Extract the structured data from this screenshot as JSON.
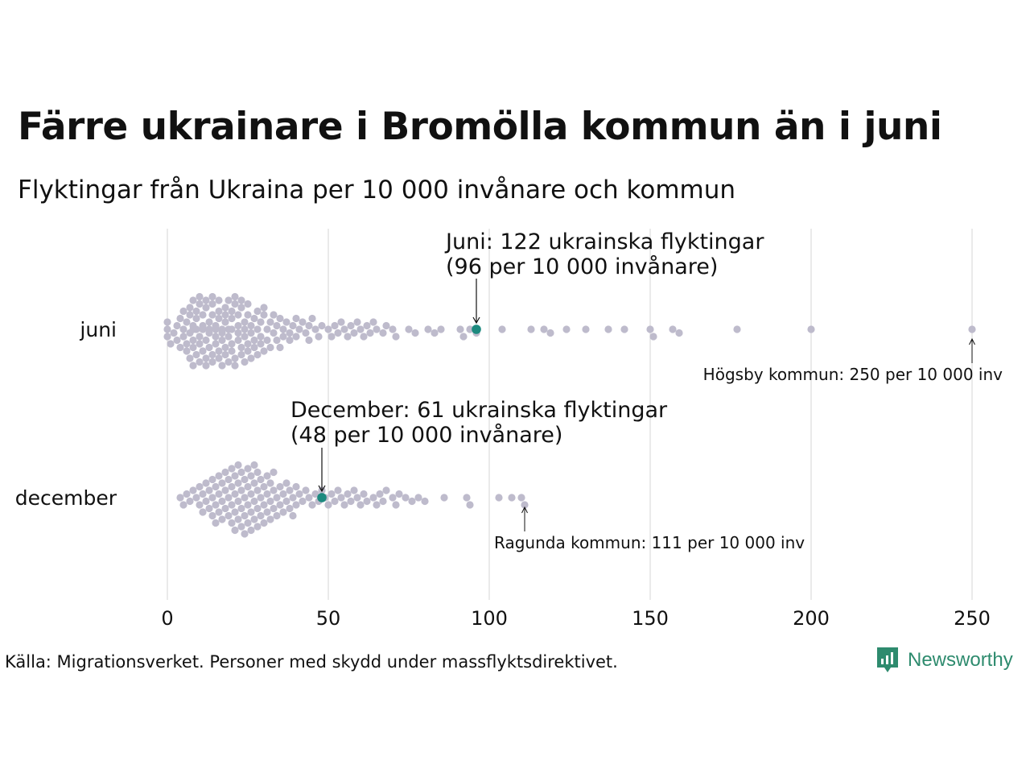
{
  "title": "Färre ukrainare i Bromölla kommun än i juni",
  "subtitle": "Flyktingar från Ukraina per 10 000 invånare och kommun",
  "source": "Källa: Migrationsverket. Personer med skydd under massflyktsdirektivet.",
  "brand": "Newsworthy",
  "colors": {
    "dots": "#bebbcc",
    "highlight": "#1d8a7f",
    "grid": "#d6d6d6",
    "text": "#111111",
    "brand": "#2e8b6e"
  },
  "chart_data": {
    "type": "scatter",
    "subtype": "beeswarm",
    "xlim": [
      0,
      250
    ],
    "x_ticks": [
      0,
      50,
      100,
      150,
      200,
      250
    ],
    "grid": true,
    "categories": [
      "juni",
      "december"
    ],
    "series": [
      {
        "name": "juni",
        "values": [
          0,
          0,
          0,
          1,
          2,
          3,
          3,
          4,
          4,
          5,
          5,
          5,
          6,
          6,
          6,
          7,
          7,
          7,
          7,
          8,
          8,
          8,
          8,
          8,
          8,
          9,
          9,
          9,
          9,
          10,
          10,
          10,
          10,
          10,
          11,
          11,
          11,
          11,
          11,
          12,
          12,
          12,
          12,
          12,
          13,
          13,
          13,
          13,
          13,
          14,
          14,
          14,
          14,
          14,
          15,
          15,
          15,
          15,
          15,
          16,
          16,
          16,
          16,
          16,
          17,
          17,
          17,
          17,
          18,
          18,
          18,
          18,
          18,
          19,
          19,
          19,
          19,
          20,
          20,
          20,
          20,
          20,
          21,
          21,
          21,
          21,
          22,
          22,
          22,
          22,
          23,
          23,
          23,
          23,
          24,
          24,
          24,
          24,
          25,
          25,
          25,
          25,
          26,
          26,
          26,
          27,
          27,
          27,
          28,
          28,
          28,
          29,
          29,
          29,
          30,
          30,
          30,
          31,
          31,
          32,
          32,
          33,
          33,
          34,
          34,
          35,
          35,
          36,
          36,
          37,
          38,
          38,
          39,
          40,
          40,
          41,
          42,
          43,
          44,
          44,
          45,
          46,
          47,
          48,
          50,
          51,
          52,
          53,
          54,
          55,
          56,
          57,
          58,
          59,
          60,
          61,
          62,
          63,
          64,
          65,
          67,
          68,
          70,
          71,
          75,
          77,
          81,
          83,
          85,
          91,
          92,
          94,
          96,
          104,
          113,
          117,
          119,
          124,
          130,
          137,
          142,
          150,
          151,
          157,
          159,
          177,
          200,
          250
        ],
        "highlight": {
          "value": 96,
          "label_line1": "Juni: 122 ukrainska flyktingar",
          "label_line2": "(96 per 10 000 invånare)"
        },
        "annotation": {
          "value": 250,
          "text": "Högsby kommun: 250 per 10 000 inv"
        }
      },
      {
        "name": "december",
        "values": [
          4,
          5,
          6,
          7,
          8,
          9,
          10,
          10,
          11,
          11,
          12,
          12,
          13,
          13,
          14,
          14,
          14,
          15,
          15,
          15,
          16,
          16,
          16,
          17,
          17,
          17,
          18,
          18,
          18,
          19,
          19,
          19,
          20,
          20,
          20,
          20,
          21,
          21,
          21,
          21,
          22,
          22,
          22,
          22,
          23,
          23,
          23,
          23,
          24,
          24,
          24,
          24,
          25,
          25,
          25,
          25,
          26,
          26,
          26,
          26,
          27,
          27,
          27,
          27,
          28,
          28,
          28,
          28,
          29,
          29,
          29,
          30,
          30,
          30,
          31,
          31,
          31,
          32,
          32,
          32,
          33,
          33,
          33,
          34,
          34,
          35,
          35,
          36,
          36,
          37,
          37,
          38,
          38,
          39,
          39,
          40,
          40,
          41,
          42,
          43,
          44,
          45,
          46,
          47,
          48,
          49,
          50,
          51,
          52,
          53,
          54,
          55,
          56,
          57,
          58,
          59,
          60,
          61,
          62,
          64,
          65,
          66,
          67,
          68,
          70,
          71,
          72,
          74,
          76,
          78,
          80,
          86,
          93,
          94,
          103,
          107,
          110,
          111
        ],
        "highlight": {
          "value": 48,
          "label_line1": "December:  61 ukrainska flyktingar",
          "label_line2": "(48 per 10 000 invånare)"
        },
        "annotation": {
          "value": 111,
          "text": "Ragunda kommun: 111 per 10 000 inv"
        }
      }
    ]
  }
}
